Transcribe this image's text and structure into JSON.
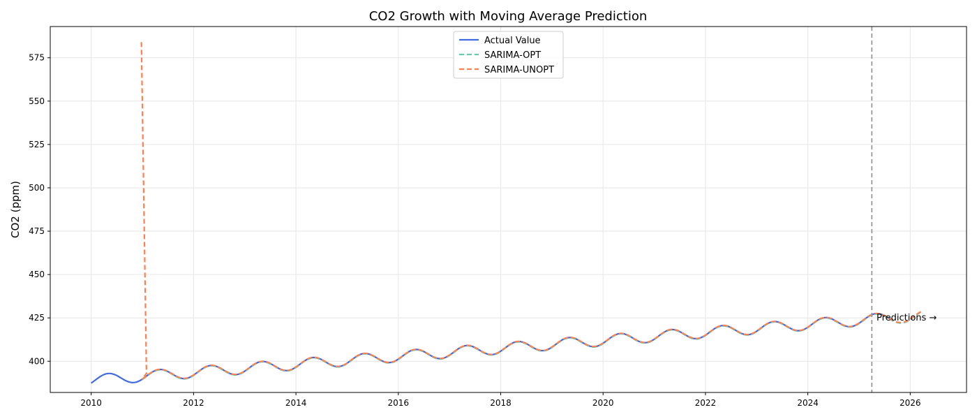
{
  "chart_data": {
    "type": "line",
    "title": "CO2 Growth with Moving Average Prediction",
    "xlabel": "",
    "ylabel": "CO2 (ppm)",
    "xlim": [
      2009.2,
      2027.1
    ],
    "ylim": [
      382,
      593
    ],
    "xticks": [
      2010,
      2012,
      2014,
      2016,
      2018,
      2020,
      2022,
      2024,
      2026
    ],
    "yticks": [
      400,
      425,
      450,
      475,
      500,
      525,
      550,
      575
    ],
    "grid": true,
    "legend_position": "top-center",
    "colors": {
      "actual": "#4169e1",
      "opt": "#66cdaa",
      "unopt": "#ff7f50",
      "vline": "#999999"
    },
    "trend": {
      "start_year": 2010,
      "start_value": 389.0,
      "annual_increase": 2.3,
      "seasonal_amplitude": 3.2,
      "peak_month": 5
    },
    "series": [
      {
        "name": "Actual Value",
        "x_start": 2010.0,
        "x_end": 2025.6,
        "style": "solid"
      },
      {
        "name": "SARIMA-OPT",
        "x_start": 2011.0,
        "x_end": 2026.25,
        "style": "dashed"
      },
      {
        "name": "SARIMA-UNOPT",
        "x_start": 2011.0,
        "x_end": 2026.25,
        "style": "dashed",
        "initial_spike": [
          [
            2010.98,
            584
          ],
          [
            2011.08,
            393
          ]
        ]
      }
    ],
    "vline_x": 2025.25,
    "annotation": {
      "text": "Predictions →",
      "x": 2025.3,
      "y": 425
    }
  }
}
